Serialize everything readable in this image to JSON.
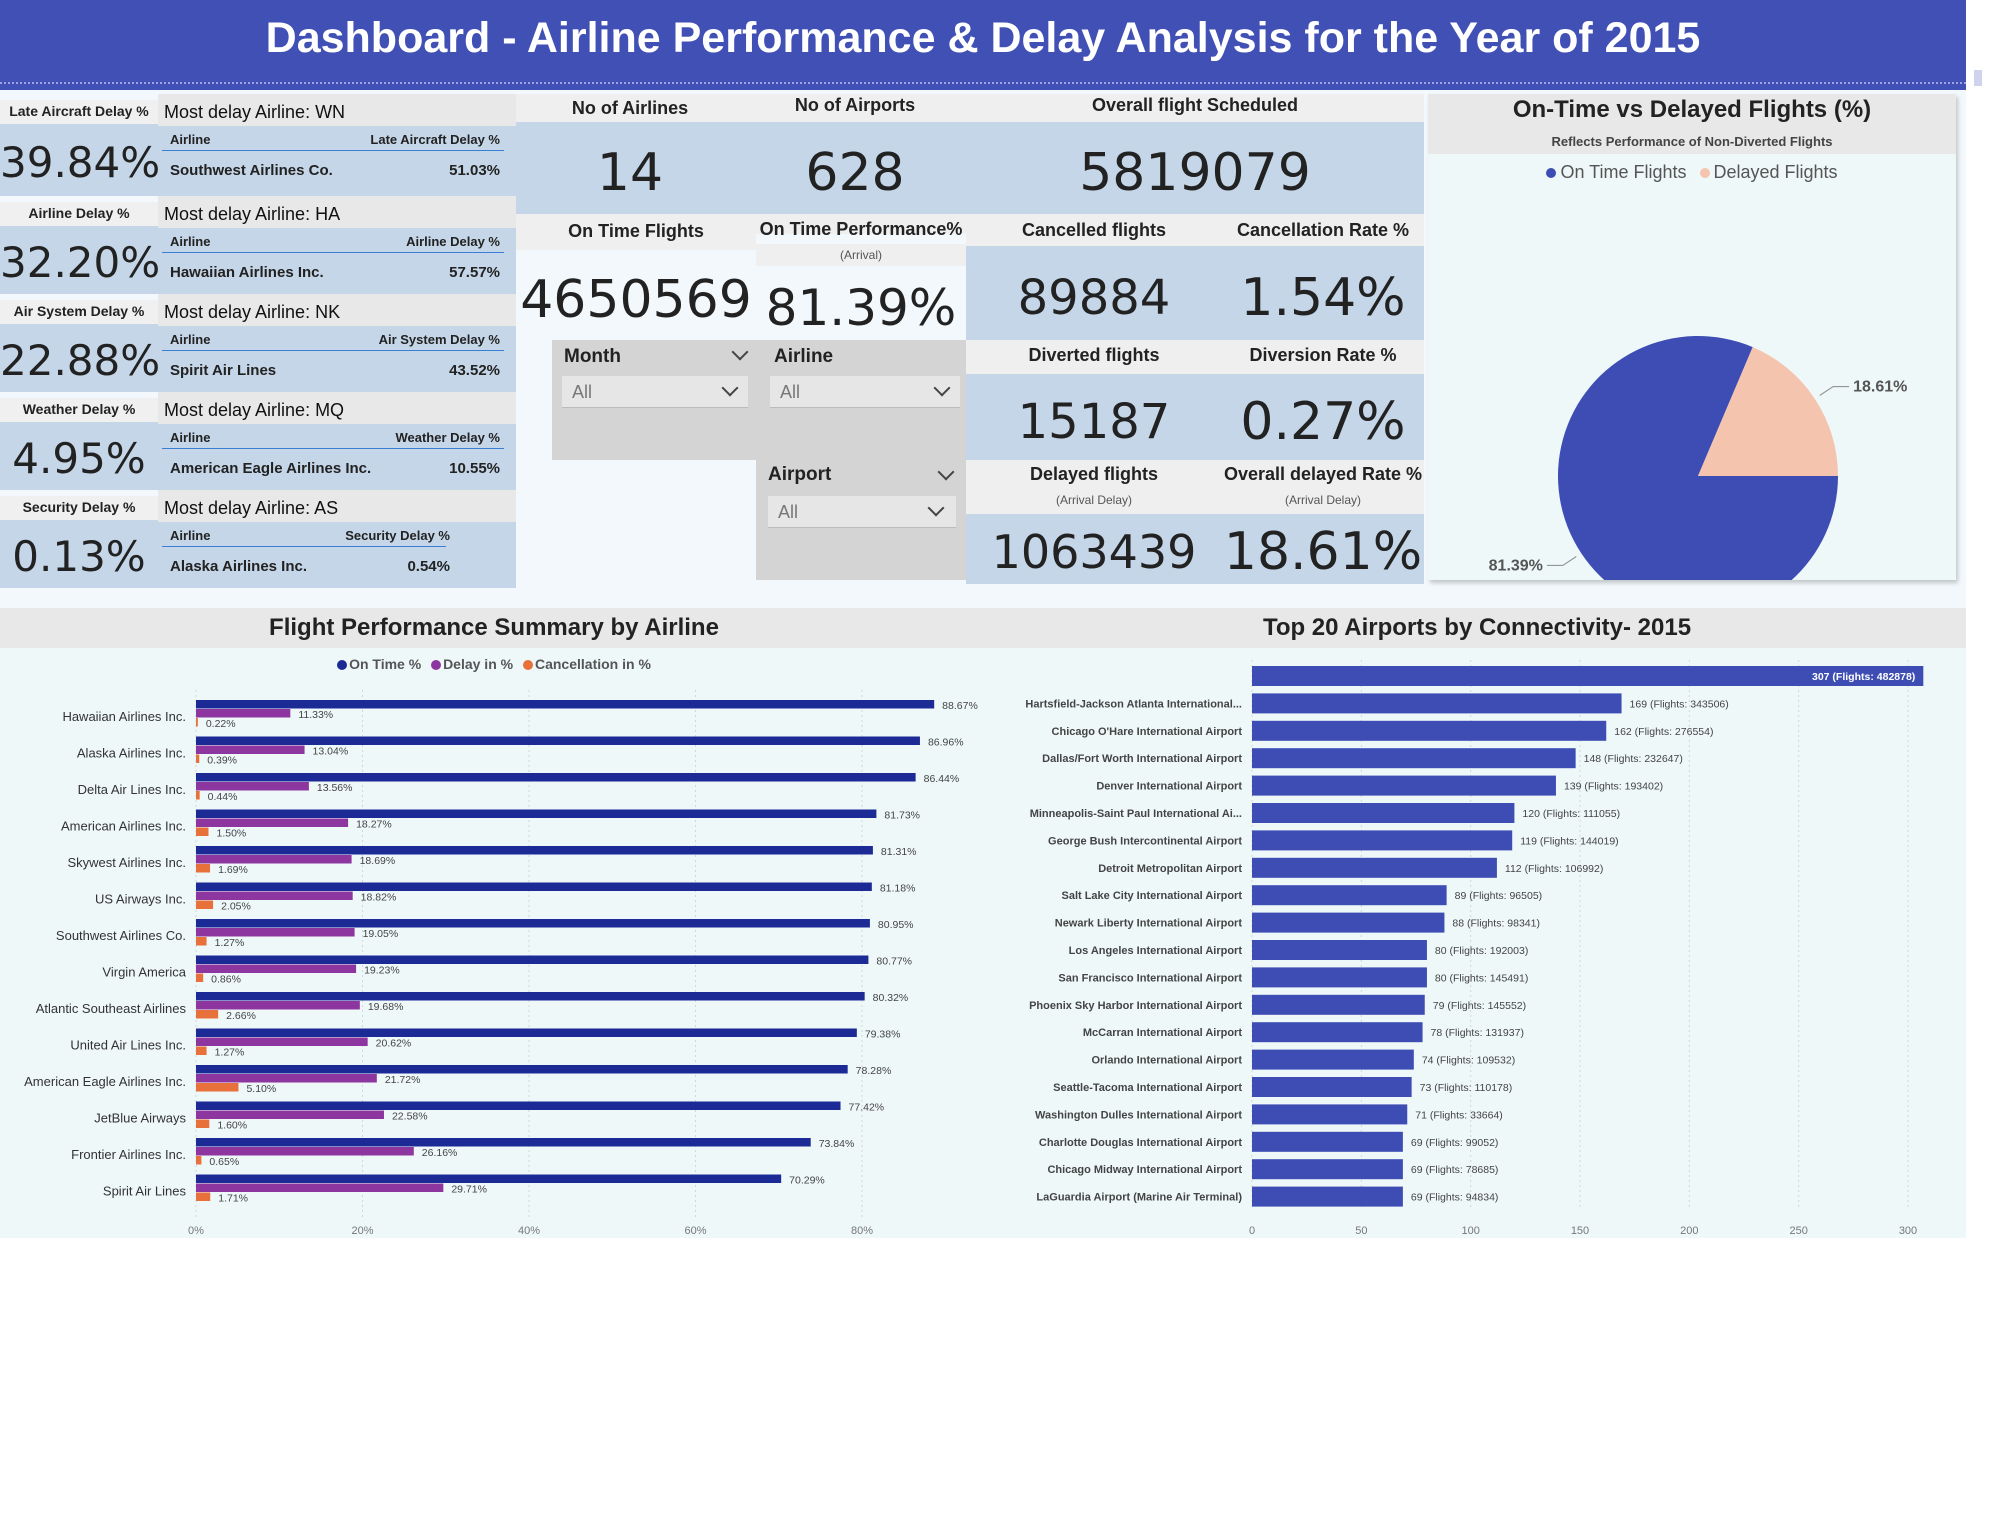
{
  "header": {
    "title": "Dashboard - Airline Performance & Delay Analysis for the Year of 2015"
  },
  "delay_types": [
    {
      "label": "Late Aircraft Delay %",
      "value": "39.84%",
      "most_delay": "Most delay Airline: WN",
      "col_airline": "Airline",
      "col_metric": "Late Aircraft Delay %",
      "airline": "Southwest Airlines Co.",
      "airline_value": "51.03%"
    },
    {
      "label": "Airline Delay %",
      "value": "32.20%",
      "most_delay": "Most delay Airline: HA",
      "col_airline": "Airline",
      "col_metric": "Airline Delay %",
      "airline": "Hawaiian Airlines Inc.",
      "airline_value": "57.57%"
    },
    {
      "label": "Air System Delay %",
      "value": "22.88%",
      "most_delay": "Most delay Airline: NK",
      "col_airline": "Airline",
      "col_metric": "Air System Delay %",
      "airline": "Spirit Air Lines",
      "airline_value": "43.52%"
    },
    {
      "label": "Weather Delay %",
      "value": "4.95%",
      "most_delay": "Most delay Airline: MQ",
      "col_airline": "Airline",
      "col_metric": "Weather Delay %",
      "airline": "American Eagle Airlines Inc.",
      "airline_value": "10.55%"
    },
    {
      "label": "Security Delay %",
      "value": "0.13%",
      "most_delay": "Most delay Airline: AS",
      "col_airline": "Airline",
      "col_metric": "Security Delay %",
      "airline": "Alaska Airlines Inc.",
      "airline_value": "0.54%"
    }
  ],
  "kpis": {
    "num_airlines": {
      "label": "No of Airlines",
      "value": "14"
    },
    "num_airports": {
      "label": "No of Airports",
      "value": "628"
    },
    "scheduled": {
      "label": "Overall flight Scheduled",
      "value": "5819079"
    },
    "on_time": {
      "label": "On Time Flights",
      "value": "4650569"
    },
    "on_time_perf": {
      "label": "On Time Performance%",
      "sub": "(Arrival)",
      "value": "81.39%"
    },
    "cancelled": {
      "label": "Cancelled flights",
      "value": "89884"
    },
    "cancel_rate": {
      "label": "Cancellation Rate %",
      "value": "1.54%"
    },
    "diverted": {
      "label": "Diverted flights",
      "value": "15187"
    },
    "diversion_rate": {
      "label": "Diversion Rate %",
      "value": "0.27%"
    },
    "delayed": {
      "label": "Delayed flights",
      "sub": "(Arrival Delay)",
      "value": "1063439"
    },
    "delayed_rate": {
      "label": "Overall delayed Rate %",
      "sub": "(Arrival Delay)",
      "value": "18.61%"
    }
  },
  "slicers": {
    "month": {
      "label": "Month",
      "value": "All"
    },
    "airline": {
      "label": "Airline",
      "value": "All"
    },
    "airport": {
      "label": "Airport",
      "value": "All"
    }
  },
  "colors": {
    "navy": "#1c2a96",
    "purple": "#8e36a0",
    "orange": "#e8703a",
    "pie_ontime": "#3d4db4",
    "pie_delayed": "#f5c4ae",
    "conn_bar": "#3d4db4"
  },
  "chart_data": [
    {
      "type": "pie",
      "title": "On-Time vs Delayed Flights (%)",
      "subtitle": "Reflects Performance of Non-Diverted Flights",
      "legend_position": "top",
      "slices": [
        {
          "name": "On Time Flights",
          "value": 81.39,
          "label": "81.39%"
        },
        {
          "name": "Delayed Flights",
          "value": 18.61,
          "label": "18.61%"
        }
      ]
    },
    {
      "type": "bar",
      "orientation": "horizontal",
      "title": "Flight Performance Summary by Airline",
      "legend_position": "top",
      "xlim": [
        0,
        90
      ],
      "x_ticks": [
        "0%",
        "20%",
        "40%",
        "60%",
        "80%"
      ],
      "x_tick_values": [
        0,
        20,
        40,
        60,
        80
      ],
      "categories": [
        "Hawaiian Airlines Inc.",
        "Alaska Airlines Inc.",
        "Delta Air Lines Inc.",
        "American Airlines Inc.",
        "Skywest Airlines Inc.",
        "US Airways Inc.",
        "Southwest Airlines Co.",
        "Virgin America",
        "Atlantic Southeast Airlines",
        "United Air Lines Inc.",
        "American Eagle Airlines Inc.",
        "JetBlue Airways",
        "Frontier Airlines Inc.",
        "Spirit Air Lines"
      ],
      "series": [
        {
          "name": "On Time %",
          "values": [
            88.67,
            86.96,
            86.44,
            81.73,
            81.31,
            81.18,
            80.95,
            80.77,
            80.32,
            79.38,
            78.28,
            77.42,
            73.84,
            70.29
          ],
          "labels": [
            "88.67%",
            "86.96%",
            "86.44%",
            "81.73%",
            "81.31%",
            "81.18%",
            "80.95%",
            "80.77%",
            "80.32%",
            "79.38%",
            "78.28%",
            "77.42%",
            "73.84%",
            "70.29%"
          ]
        },
        {
          "name": "Delay in %",
          "values": [
            11.33,
            13.04,
            13.56,
            18.27,
            18.69,
            18.82,
            19.05,
            19.23,
            19.68,
            20.62,
            21.72,
            22.58,
            26.16,
            29.71
          ],
          "labels": [
            "11.33%",
            "13.04%",
            "13.56%",
            "18.27%",
            "18.69%",
            "18.82%",
            "19.05%",
            "19.23%",
            "19.68%",
            "20.62%",
            "21.72%",
            "22.58%",
            "26.16%",
            "29.71%"
          ]
        },
        {
          "name": "Cancellation in %",
          "values": [
            0.22,
            0.39,
            0.44,
            1.5,
            1.69,
            2.05,
            1.27,
            0.86,
            2.66,
            1.27,
            5.1,
            1.6,
            0.65,
            1.71
          ],
          "labels": [
            "0.22%",
            "0.39%",
            "0.44%",
            "1.50%",
            "1.69%",
            "2.05%",
            "1.27%",
            "0.86%",
            "2.66%",
            "1.27%",
            "5.10%",
            "1.60%",
            "0.65%",
            "1.71%"
          ]
        }
      ]
    },
    {
      "type": "bar",
      "orientation": "horizontal",
      "title": "Top 20 Airports by Connectivity- 2015",
      "xlim": [
        0,
        310
      ],
      "x_ticks": [
        "0",
        "50",
        "100",
        "150",
        "200",
        "250",
        "300"
      ],
      "x_tick_values": [
        0,
        50,
        100,
        150,
        200,
        250,
        300
      ],
      "categories": [
        "",
        "Hartsfield-Jackson Atlanta International...",
        "Chicago O'Hare International Airport",
        "Dallas/Fort Worth International Airport",
        "Denver International Airport",
        "Minneapolis-Saint Paul International Ai...",
        "George Bush Intercontinental Airport",
        "Detroit Metropolitan Airport",
        "Salt Lake City International Airport",
        "Newark Liberty International Airport",
        "Los Angeles International Airport",
        "San Francisco International Airport",
        "Phoenix Sky Harbor International Airport",
        "McCarran International Airport",
        "Orlando International Airport",
        "Seattle-Tacoma International Airport",
        "Washington Dulles International Airport",
        "Charlotte Douglas International Airport",
        "Chicago Midway International Airport",
        "LaGuardia Airport (Marine Air Terminal)"
      ],
      "values": [
        307,
        169,
        162,
        148,
        139,
        120,
        119,
        112,
        89,
        88,
        80,
        80,
        79,
        78,
        74,
        73,
        71,
        69,
        69,
        69
      ],
      "labels": [
        "307 (Flights: 482878)",
        "169 (Flights: 343506)",
        "162 (Flights: 276554)",
        "148 (Flights: 232647)",
        "139 (Flights: 193402)",
        "120 (Flights: 111055)",
        "119 (Flights: 144019)",
        "112 (Flights: 106992)",
        "89 (Flights: 96505)",
        "88 (Flights: 98341)",
        "80 (Flights: 192003)",
        "80 (Flights: 145491)",
        "79 (Flights: 145552)",
        "78 (Flights: 131937)",
        "74 (Flights: 109532)",
        "73 (Flights: 110178)",
        "71 (Flights: 33664)",
        "69 (Flights: 99052)",
        "69 (Flights: 78685)",
        "69 (Flights: 94834)"
      ]
    }
  ]
}
